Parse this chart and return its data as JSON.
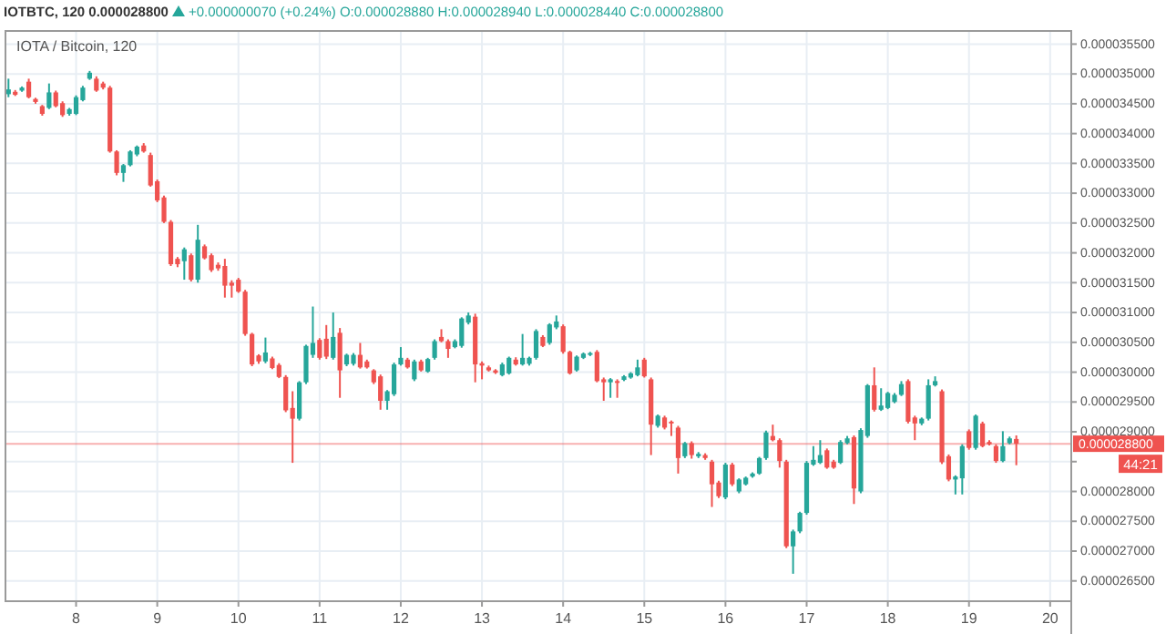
{
  "chart_data": {
    "type": "candlestick",
    "title": "IOTA / Bitcoin, 120",
    "subtitle": "IOTBTC, 120 0.000028800",
    "annotations": [
      "+0.000000070 (+0.24%) O:0.000028880 H:0.000028940 L:0.000028440 C:0.000028800",
      "44:21"
    ],
    "x": [
      7.167,
      7.25,
      7.333,
      7.417,
      7.5,
      7.583,
      7.667,
      7.75,
      7.833,
      7.917,
      8,
      8.083,
      8.167,
      8.25,
      8.333,
      8.417,
      8.5,
      8.583,
      8.667,
      8.75,
      8.833,
      8.917,
      9,
      9.083,
      9.167,
      9.25,
      9.333,
      9.417,
      9.5,
      9.583,
      9.667,
      9.75,
      9.833,
      9.917,
      10,
      10.083,
      10.167,
      10.25,
      10.333,
      10.417,
      10.5,
      10.583,
      10.667,
      10.75,
      10.833,
      10.917,
      11,
      11.083,
      11.167,
      11.25,
      11.333,
      11.417,
      11.5,
      11.583,
      11.667,
      11.75,
      11.833,
      11.917,
      12,
      12.083,
      12.167,
      12.25,
      12.333,
      12.417,
      12.5,
      12.583,
      12.667,
      12.75,
      12.833,
      12.917,
      13,
      13.083,
      13.167,
      13.25,
      13.333,
      13.417,
      13.5,
      13.583,
      13.667,
      13.75,
      13.833,
      13.917,
      14,
      14.083,
      14.167,
      14.25,
      14.333,
      14.417,
      14.5,
      14.583,
      14.667,
      14.75,
      14.833,
      14.917,
      15,
      15.083,
      15.167,
      15.25,
      15.333,
      15.417,
      15.5,
      15.583,
      15.667,
      15.75,
      15.833,
      15.917,
      16,
      16.083,
      16.167,
      16.25,
      16.333,
      16.417,
      16.5,
      16.583,
      16.667,
      16.75,
      16.833,
      16.917,
      17,
      17.083,
      17.167,
      17.25,
      17.333,
      17.417,
      17.5,
      17.583,
      17.667,
      17.75,
      17.833,
      17.917,
      18,
      18.083,
      18.167,
      18.25,
      18.333,
      18.417,
      18.5,
      18.583,
      18.667,
      18.75,
      18.833,
      18.917,
      19,
      19.083,
      19.167,
      19.25,
      19.333,
      19.417,
      19.5,
      19.583
    ],
    "ohlc": [
      [
        3.466e-05,
        3.492e-05,
        3.461e-05,
        3.474e-05
      ],
      [
        3.47e-05,
        3.473e-05,
        3.463e-05,
        3.465e-05
      ],
      [
        3.472e-05,
        3.479e-05,
        3.47e-05,
        3.477e-05
      ],
      [
        3.487e-05,
        3.492e-05,
        3.459e-05,
        3.461e-05
      ],
      [
        3.458e-05,
        3.46e-05,
        3.45e-05,
        3.453e-05
      ],
      [
        3.446e-05,
        3.448e-05,
        3.43e-05,
        3.433e-05
      ],
      [
        3.443e-05,
        3.484e-05,
        3.441e-05,
        3.469e-05
      ],
      [
        3.469e-05,
        3.472e-05,
        3.444e-05,
        3.446e-05
      ],
      [
        3.451e-05,
        3.454e-05,
        3.428e-05,
        3.431e-05
      ],
      [
        3.433e-05,
        3.443e-05,
        3.43e-05,
        3.441e-05
      ],
      [
        3.433e-05,
        3.464e-05,
        3.431e-05,
        3.461e-05
      ],
      [
        3.456e-05,
        3.48e-05,
        3.454e-05,
        3.477e-05
      ],
      [
        3.492e-05,
        3.505e-05,
        3.49e-05,
        3.502e-05
      ],
      [
        3.492e-05,
        3.496e-05,
        3.47e-05,
        3.472e-05
      ],
      [
        3.484e-05,
        3.487e-05,
        3.474e-05,
        3.477e-05
      ],
      [
        3.477e-05,
        3.48e-05,
        3.368e-05,
        3.37e-05
      ],
      [
        3.37e-05,
        3.372e-05,
        3.33e-05,
        3.334e-05
      ],
      [
        3.334e-05,
        3.349e-05,
        3.319e-05,
        3.347e-05
      ],
      [
        3.347e-05,
        3.372e-05,
        3.345e-05,
        3.37e-05
      ],
      [
        3.365e-05,
        3.38e-05,
        3.362e-05,
        3.378e-05
      ],
      [
        3.38e-05,
        3.384e-05,
        3.368e-05,
        3.37e-05
      ],
      [
        3.364e-05,
        3.368e-05,
        3.311e-05,
        3.313e-05
      ],
      [
        3.32e-05,
        3.323e-05,
        3.285e-05,
        3.288e-05
      ],
      [
        3.293e-05,
        3.296e-05,
        3.25e-05,
        3.252e-05
      ],
      [
        3.252e-05,
        3.255e-05,
        3.178e-05,
        3.181e-05
      ],
      [
        3.19e-05,
        3.193e-05,
        3.176e-05,
        3.181e-05
      ],
      [
        3.186e-05,
        3.209e-05,
        3.155e-05,
        3.206e-05
      ],
      [
        3.196e-05,
        3.199e-05,
        3.152e-05,
        3.155e-05
      ],
      [
        3.155e-05,
        3.247e-05,
        3.15e-05,
        3.222e-05
      ],
      [
        3.211e-05,
        3.214e-05,
        3.189e-05,
        3.191e-05
      ],
      [
        3.196e-05,
        3.199e-05,
        3.168e-05,
        3.171e-05
      ],
      [
        3.18e-05,
        3.184e-05,
        3.17e-05,
        3.174e-05
      ],
      [
        3.178e-05,
        3.19e-05,
        3.125e-05,
        3.145e-05
      ],
      [
        3.15e-05,
        3.154e-05,
        3.125e-05,
        3.145e-05
      ],
      [
        3.155e-05,
        3.158e-05,
        3.133e-05,
        3.135e-05
      ],
      [
        3.135e-05,
        3.138e-05,
        3.061e-05,
        3.064e-05
      ],
      [
        3.064e-05,
        3.066e-05,
        3.01e-05,
        3.013e-05
      ],
      [
        3.028e-05,
        3.03e-05,
        3.014e-05,
        3.018e-05
      ],
      [
        3.018e-05,
        3.058e-05,
        3.015e-05,
        3.033e-05
      ],
      [
        3.023e-05,
        3.026e-05,
        3.005e-05,
        3.007e-05
      ],
      [
        3.012e-05,
        3.015e-05,
        2.99e-05,
        2.992e-05
      ],
      [
        2.992e-05,
        2.995e-05,
        2.933e-05,
        2.936e-05
      ],
      [
        2.94e-05,
        2.968e-05,
        2.848e-05,
        2.922e-05
      ],
      [
        2.922e-05,
        2.985e-05,
        2.919e-05,
        2.983e-05
      ],
      [
        2.983e-05,
        3.046e-05,
        2.98e-05,
        3.044e-05
      ],
      [
        3.029e-05,
        3.11e-05,
        3.024e-05,
        3.049e-05
      ],
      [
        3.054e-05,
        3.057e-05,
        3.021e-05,
        3.024e-05
      ],
      [
        3.056e-05,
        3.079e-05,
        3.022e-05,
        3.026e-05
      ],
      [
        3.024e-05,
        3.1e-05,
        3.021e-05,
        3.059e-05
      ],
      [
        3.066e-05,
        3.074e-05,
        2.957e-05,
        3.003e-05
      ],
      [
        3.013e-05,
        3.031e-05,
        3.01e-05,
        3.029e-05
      ],
      [
        3.014e-05,
        3.032e-05,
        3.011e-05,
        3.029e-05
      ],
      [
        3.029e-05,
        3.049e-05,
        3.006e-05,
        3.008e-05
      ],
      [
        3.018e-05,
        3.021e-05,
        3.006e-05,
        3.008e-05
      ],
      [
        3.003e-05,
        3.005e-05,
        2.98e-05,
        2.983e-05
      ],
      [
        2.993e-05,
        2.996e-05,
        2.937e-05,
        2.952e-05
      ],
      [
        2.952e-05,
        2.97e-05,
        2.937e-05,
        2.968e-05
      ],
      [
        2.963e-05,
        3.016e-05,
        2.96e-05,
        3.013e-05
      ],
      [
        3.013e-05,
        3.042e-05,
        3.011e-05,
        3.024e-05
      ],
      [
        3.021e-05,
        3.024e-05,
        3.006e-05,
        3.008e-05
      ],
      [
        2.988e-05,
        3.021e-05,
        2.985e-05,
        3.018e-05
      ],
      [
        3.018e-05,
        3.021e-05,
        3.001e-05,
        3.003e-05
      ],
      [
        3.001e-05,
        3.024e-05,
        2.999e-05,
        3.022e-05
      ],
      [
        3.024e-05,
        3.055e-05,
        3.021e-05,
        3.052e-05
      ],
      [
        3.059e-05,
        3.072e-05,
        3.05e-05,
        3.052e-05
      ],
      [
        3.052e-05,
        3.055e-05,
        3.024e-05,
        3.039e-05
      ],
      [
        3.042e-05,
        3.055e-05,
        3.04e-05,
        3.052e-05
      ],
      [
        3.044e-05,
        3.092e-05,
        3.041e-05,
        3.09e-05
      ],
      [
        3.083e-05,
        3.1e-05,
        3.08e-05,
        3.095e-05
      ],
      [
        3.093e-05,
        3.098e-05,
        2.983e-05,
        3.013e-05
      ],
      [
        3.015e-05,
        3.018e-05,
        2.988e-05,
        3.011e-05
      ],
      [
        3.008e-05,
        3.011e-05,
        3.001e-05,
        3.003e-05
      ],
      [
        3.003e-05,
        3.005e-05,
        2.997e-05,
        2.999e-05
      ],
      [
        2.995e-05,
        3.016e-05,
        2.993e-05,
        3.013e-05
      ],
      [
        2.998e-05,
        3.026e-05,
        2.996e-05,
        3.024e-05
      ],
      [
        3.021e-05,
        3.025e-05,
        3.011e-05,
        3.013e-05
      ],
      [
        3.013e-05,
        3.064e-05,
        3.011e-05,
        3.024e-05
      ],
      [
        3.014e-05,
        3.026e-05,
        3.011e-05,
        3.024e-05
      ],
      [
        3.024e-05,
        3.072e-05,
        3.021e-05,
        3.069e-05
      ],
      [
        3.059e-05,
        3.062e-05,
        3.042e-05,
        3.044e-05
      ],
      [
        3.049e-05,
        3.082e-05,
        3.046e-05,
        3.08e-05
      ],
      [
        3.075e-05,
        3.095e-05,
        3.072e-05,
        3.085e-05
      ],
      [
        3.077e-05,
        3.08e-05,
        3.031e-05,
        3.034e-05
      ],
      [
        3.034e-05,
        3.036e-05,
        2.996e-05,
        2.998e-05
      ],
      [
        3.003e-05,
        3.028e-05,
        3.001e-05,
        3.026e-05
      ],
      [
        3.024e-05,
        3.033e-05,
        3.022e-05,
        3.031e-05
      ],
      [
        3.029e-05,
        3.034e-05,
        3.027e-05,
        3.032e-05
      ],
      [
        3.034e-05,
        3.037e-05,
        2.983e-05,
        2.985e-05
      ],
      [
        2.988e-05,
        2.991e-05,
        2.952e-05,
        2.983e-05
      ],
      [
        2.983e-05,
        2.99e-05,
        2.957e-05,
        2.988e-05
      ],
      [
        2.985e-05,
        2.988e-05,
        2.957e-05,
        2.982e-05
      ],
      [
        2.987e-05,
        2.995e-05,
        2.985e-05,
        2.993e-05
      ],
      [
        2.991e-05,
        3e-05,
        2.989e-05,
        2.998e-05
      ],
      [
        2.995e-05,
        3.021e-05,
        2.993e-05,
        3.008e-05
      ],
      [
        3.021e-05,
        3.024e-05,
        2.991e-05,
        2.993e-05
      ],
      [
        2.988e-05,
        2.991e-05,
        2.861e-05,
        2.912e-05
      ],
      [
        2.91e-05,
        2.929e-05,
        2.907e-05,
        2.927e-05
      ],
      [
        2.924e-05,
        2.927e-05,
        2.904e-05,
        2.907e-05
      ],
      [
        2.917e-05,
        2.919e-05,
        2.893e-05,
        2.914e-05
      ],
      [
        2.907e-05,
        2.91e-05,
        2.83e-05,
        2.856e-05
      ],
      [
        2.859e-05,
        2.883e-05,
        2.856e-05,
        2.881e-05
      ],
      [
        2.881e-05,
        2.884e-05,
        2.855e-05,
        2.861e-05
      ],
      [
        2.859e-05,
        2.866e-05,
        2.856e-05,
        2.863e-05
      ],
      [
        2.861e-05,
        2.864e-05,
        2.853e-05,
        2.856e-05
      ],
      [
        2.85e-05,
        2.853e-05,
        2.774e-05,
        2.812e-05
      ],
      [
        2.815e-05,
        2.818e-05,
        2.789e-05,
        2.792e-05
      ],
      [
        2.79e-05,
        2.848e-05,
        2.787e-05,
        2.845e-05
      ],
      [
        2.845e-05,
        2.848e-05,
        2.809e-05,
        2.812e-05
      ],
      [
        2.8e-05,
        2.822e-05,
        2.797e-05,
        2.82e-05
      ],
      [
        2.812e-05,
        2.825e-05,
        2.81e-05,
        2.823e-05
      ],
      [
        2.825e-05,
        2.832e-05,
        2.823e-05,
        2.83e-05
      ],
      [
        2.83e-05,
        2.858e-05,
        2.828e-05,
        2.856e-05
      ],
      [
        2.856e-05,
        2.902e-05,
        2.853e-05,
        2.899e-05
      ],
      [
        2.893e-05,
        2.912e-05,
        2.884e-05,
        2.886e-05
      ],
      [
        2.886e-05,
        2.889e-05,
        2.84e-05,
        2.851e-05
      ],
      [
        2.85e-05,
        2.853e-05,
        2.705e-05,
        2.708e-05
      ],
      [
        2.708e-05,
        2.736e-05,
        2.662e-05,
        2.733e-05
      ],
      [
        2.733e-05,
        2.766e-05,
        2.73e-05,
        2.764e-05
      ],
      [
        2.764e-05,
        2.851e-05,
        2.761e-05,
        2.848e-05
      ],
      [
        2.845e-05,
        2.876e-05,
        2.843e-05,
        2.853e-05
      ],
      [
        2.848e-05,
        2.886e-05,
        2.846e-05,
        2.861e-05
      ],
      [
        2.869e-05,
        2.872e-05,
        2.838e-05,
        2.84e-05
      ],
      [
        2.85e-05,
        2.853e-05,
        2.838e-05,
        2.84e-05
      ],
      [
        2.848e-05,
        2.886e-05,
        2.846e-05,
        2.883e-05
      ],
      [
        2.881e-05,
        2.893e-05,
        2.879e-05,
        2.889e-05
      ],
      [
        2.891e-05,
        2.894e-05,
        2.779e-05,
        2.805e-05
      ],
      [
        2.8e-05,
        2.906e-05,
        2.797e-05,
        2.903e-05
      ],
      [
        2.893e-05,
        2.98e-05,
        2.89e-05,
        2.978e-05
      ],
      [
        2.978e-05,
        3.008e-05,
        2.934e-05,
        2.937e-05
      ],
      [
        2.937e-05,
        2.973e-05,
        2.935e-05,
        2.944e-05
      ],
      [
        2.94e-05,
        2.967e-05,
        2.938e-05,
        2.965e-05
      ],
      [
        2.95e-05,
        2.965e-05,
        2.948e-05,
        2.962e-05
      ],
      [
        2.962e-05,
        2.985e-05,
        2.96e-05,
        2.98e-05
      ],
      [
        2.985e-05,
        2.988e-05,
        2.914e-05,
        2.917e-05
      ],
      [
        2.924e-05,
        2.927e-05,
        2.886e-05,
        2.914e-05
      ],
      [
        2.914e-05,
        2.924e-05,
        2.911e-05,
        2.922e-05
      ],
      [
        2.922e-05,
        2.988e-05,
        2.919e-05,
        2.978e-05
      ],
      [
        2.978e-05,
        2.993e-05,
        2.976e-05,
        2.985e-05
      ],
      [
        2.968e-05,
        2.971e-05,
        2.846e-05,
        2.849e-05
      ],
      [
        2.859e-05,
        2.862e-05,
        2.817e-05,
        2.82e-05
      ],
      [
        2.82e-05,
        2.827e-05,
        2.795e-05,
        2.825e-05
      ],
      [
        2.822e-05,
        2.879e-05,
        2.795e-05,
        2.876e-05
      ],
      [
        2.901e-05,
        2.904e-05,
        2.87e-05,
        2.873e-05
      ],
      [
        2.873e-05,
        2.929e-05,
        2.87e-05,
        2.927e-05
      ],
      [
        2.914e-05,
        2.917e-05,
        2.874e-05,
        2.876e-05
      ],
      [
        2.883e-05,
        2.886e-05,
        2.877e-05,
        2.879e-05
      ],
      [
        2.876e-05,
        2.879e-05,
        2.848e-05,
        2.851e-05
      ],
      [
        2.851e-05,
        2.901e-05,
        2.849e-05,
        2.876e-05
      ],
      [
        2.881e-05,
        2.892e-05,
        2.879e-05,
        2.889e-05
      ],
      [
        2.888e-05,
        2.894e-05,
        2.844e-05,
        2.88e-05
      ]
    ],
    "colors": [
      "#26a69a",
      "#ef5350",
      "#26a69a",
      "#ef5350",
      "#ef5350",
      "#ef5350",
      "#26a69a",
      "#ef5350",
      "#ef5350",
      "#26a69a",
      "#26a69a",
      "#26a69a",
      "#26a69a",
      "#ef5350",
      "#ef5350",
      "#ef5350",
      "#ef5350",
      "#26a69a",
      "#26a69a",
      "#26a69a",
      "#ef5350",
      "#ef5350",
      "#ef5350",
      "#ef5350",
      "#ef5350",
      "#ef5350",
      "#26a69a",
      "#ef5350",
      "#26a69a",
      "#ef5350",
      "#ef5350",
      "#ef5350",
      "#ef5350",
      "#ef5350",
      "#ef5350",
      "#ef5350",
      "#ef5350",
      "#ef5350",
      "#26a69a",
      "#ef5350",
      "#ef5350",
      "#ef5350",
      "#ef5350",
      "#26a69a",
      "#26a69a",
      "#26a69a",
      "#ef5350",
      "#ef5350",
      "#26a69a",
      "#ef5350",
      "#26a69a",
      "#26a69a",
      "#ef5350",
      "#ef5350",
      "#ef5350",
      "#ef5350",
      "#26a69a",
      "#26a69a",
      "#26a69a",
      "#ef5350",
      "#26a69a",
      "#ef5350",
      "#26a69a",
      "#26a69a",
      "#ef5350",
      "#ef5350",
      "#26a69a",
      "#26a69a",
      "#26a69a",
      "#ef5350",
      "#ef5350",
      "#ef5350",
      "#ef5350",
      "#26a69a",
      "#26a69a",
      "#ef5350",
      "#26a69a",
      "#26a69a",
      "#26a69a",
      "#ef5350",
      "#26a69a",
      "#26a69a",
      "#ef5350",
      "#ef5350",
      "#26a69a",
      "#26a69a",
      "#26a69a",
      "#ef5350",
      "#ef5350",
      "#26a69a",
      "#ef5350",
      "#26a69a",
      "#26a69a",
      "#26a69a",
      "#ef5350",
      "#ef5350",
      "#26a69a",
      "#ef5350",
      "#ef5350",
      "#ef5350",
      "#26a69a",
      "#ef5350",
      "#26a69a",
      "#ef5350",
      "#ef5350",
      "#ef5350",
      "#26a69a",
      "#ef5350",
      "#26a69a",
      "#26a69a",
      "#26a69a",
      "#26a69a",
      "#26a69a",
      "#ef5350",
      "#ef5350",
      "#ef5350",
      "#26a69a",
      "#26a69a",
      "#26a69a",
      "#26a69a",
      "#26a69a",
      "#ef5350",
      "#ef5350",
      "#26a69a",
      "#26a69a",
      "#ef5350",
      "#26a69a",
      "#26a69a",
      "#ef5350",
      "#26a69a",
      "#26a69a",
      "#26a69a",
      "#26a69a",
      "#ef5350",
      "#ef5350",
      "#26a69a",
      "#26a69a",
      "#26a69a",
      "#ef5350",
      "#ef5350",
      "#26a69a",
      "#26a69a",
      "#ef5350",
      "#26a69a",
      "#ef5350",
      "#ef5350",
      "#ef5350",
      "#26a69a",
      "#26a69a",
      "#ef5350"
    ],
    "xlim": [
      7.13,
      20.26
    ],
    "xticks": [
      8,
      9,
      10,
      11,
      12,
      13,
      14,
      15,
      16,
      17,
      18,
      19,
      20
    ],
    "ylim": [
      2.616e-05,
      3.572e-05
    ],
    "yticks": [
      {
        "value": 2.65e-05,
        "label": "0.000026500"
      },
      {
        "value": 2.7e-05,
        "label": "0.000027000"
      },
      {
        "value": 2.75e-05,
        "label": "0.000027500"
      },
      {
        "value": 2.8e-05,
        "label": "0.000028000"
      },
      {
        "value": 2.85e-05,
        "label": null
      },
      {
        "value": 2.9e-05,
        "label": "0.000029000"
      },
      {
        "value": 2.95e-05,
        "label": "0.000029500"
      },
      {
        "value": 3e-05,
        "label": "0.000030000"
      },
      {
        "value": 3.05e-05,
        "label": "0.000030500"
      },
      {
        "value": 3.1e-05,
        "label": "0.000031000"
      },
      {
        "value": 3.15e-05,
        "label": "0.000031500"
      },
      {
        "value": 3.2e-05,
        "label": "0.000032000"
      },
      {
        "value": 3.25e-05,
        "label": "0.000032500"
      },
      {
        "value": 3.3e-05,
        "label": "0.000033000"
      },
      {
        "value": 3.35e-05,
        "label": "0.000033500"
      },
      {
        "value": 3.4e-05,
        "label": "0.000034000"
      },
      {
        "value": 3.45e-05,
        "label": "0.000034500"
      },
      {
        "value": 3.5e-05,
        "label": "0.000035000"
      },
      {
        "value": 3.55e-05,
        "label": "0.000035500"
      }
    ],
    "grid": true,
    "ref_lines": [
      {
        "axis": "y",
        "value": 2.88e-05,
        "label": "0.000028800",
        "color": "#ef5350"
      }
    ]
  }
}
